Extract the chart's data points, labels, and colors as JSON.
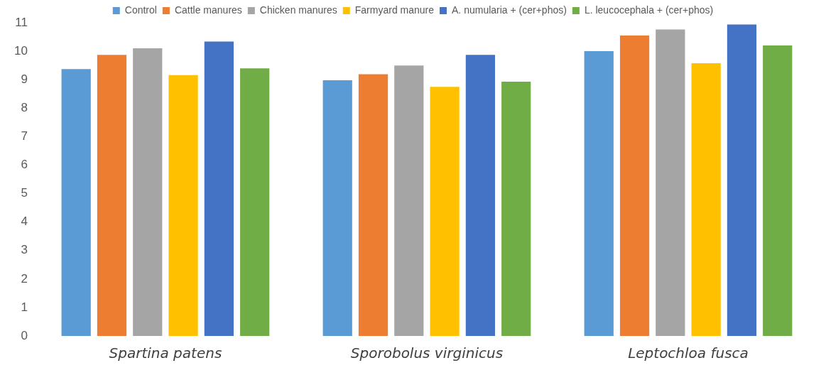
{
  "chart_data": {
    "type": "bar",
    "categories": [
      "Spartina patens",
      "Sporobolus virginicus",
      "Leptochloa fusca"
    ],
    "series": [
      {
        "name": "Control",
        "color": "#5b9bd5",
        "values": [
          9.37,
          8.98,
          10.0
        ]
      },
      {
        "name": "Cattle manures",
        "color": "#ed7d31",
        "values": [
          9.87,
          9.19,
          10.55
        ]
      },
      {
        "name": "Chicken manures",
        "color": "#a5a5a5",
        "values": [
          10.1,
          9.5,
          10.76
        ]
      },
      {
        "name": "Farmyard manure",
        "color": "#ffc000",
        "values": [
          9.16,
          8.75,
          9.58
        ]
      },
      {
        "name": "A. numularia + (cer+phos)",
        "color": "#4472c4",
        "values": [
          10.34,
          9.87,
          10.94
        ]
      },
      {
        "name": "L. leucocephala + (cer+phos)",
        "color": "#70ad47",
        "values": [
          9.4,
          8.93,
          10.2
        ]
      }
    ],
    "ylim": [
      0,
      11
    ],
    "yticks": [
      0,
      1,
      2,
      3,
      4,
      5,
      6,
      7,
      8,
      9,
      10,
      11
    ],
    "grid": false,
    "legend": "top"
  }
}
